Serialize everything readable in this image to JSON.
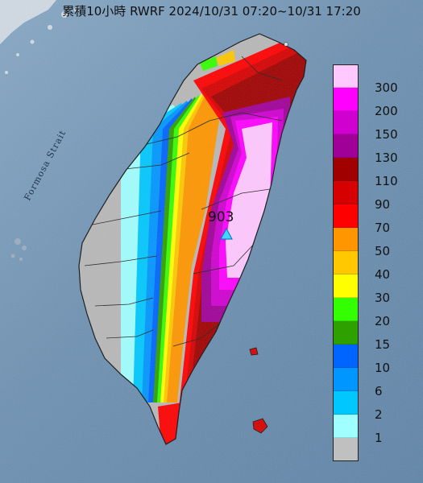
{
  "map": {
    "title": "累積10小時 RWRF 2024/10/31 07:20~10/31 17:20",
    "strait_label": "Formosa Strait",
    "peak": {
      "value": "903",
      "marker": "triangle-icon"
    },
    "legend": {
      "entries": [
        {
          "label": "300",
          "color": "#ffc8ff"
        },
        {
          "label": "200",
          "color": "#ff00ff"
        },
        {
          "label": "150",
          "color": "#d000d0"
        },
        {
          "label": "130",
          "color": "#a00098"
        },
        {
          "label": "110",
          "color": "#a00000"
        },
        {
          "label": "90",
          "color": "#d60000"
        },
        {
          "label": "70",
          "color": "#ff0000"
        },
        {
          "label": "50",
          "color": "#ff9600"
        },
        {
          "label": "40",
          "color": "#ffc800"
        },
        {
          "label": "30",
          "color": "#ffff00"
        },
        {
          "label": "20",
          "color": "#33ff00"
        },
        {
          "label": "15",
          "color": "#2ea000"
        },
        {
          "label": "10",
          "color": "#0064ff"
        },
        {
          "label": "6",
          "color": "#0096ff"
        },
        {
          "label": "2",
          "color": "#00c8ff"
        },
        {
          "label": "1",
          "color": "#a0ffff"
        },
        {
          "label": "",
          "color": "#c0c0c0"
        }
      ]
    }
  }
}
